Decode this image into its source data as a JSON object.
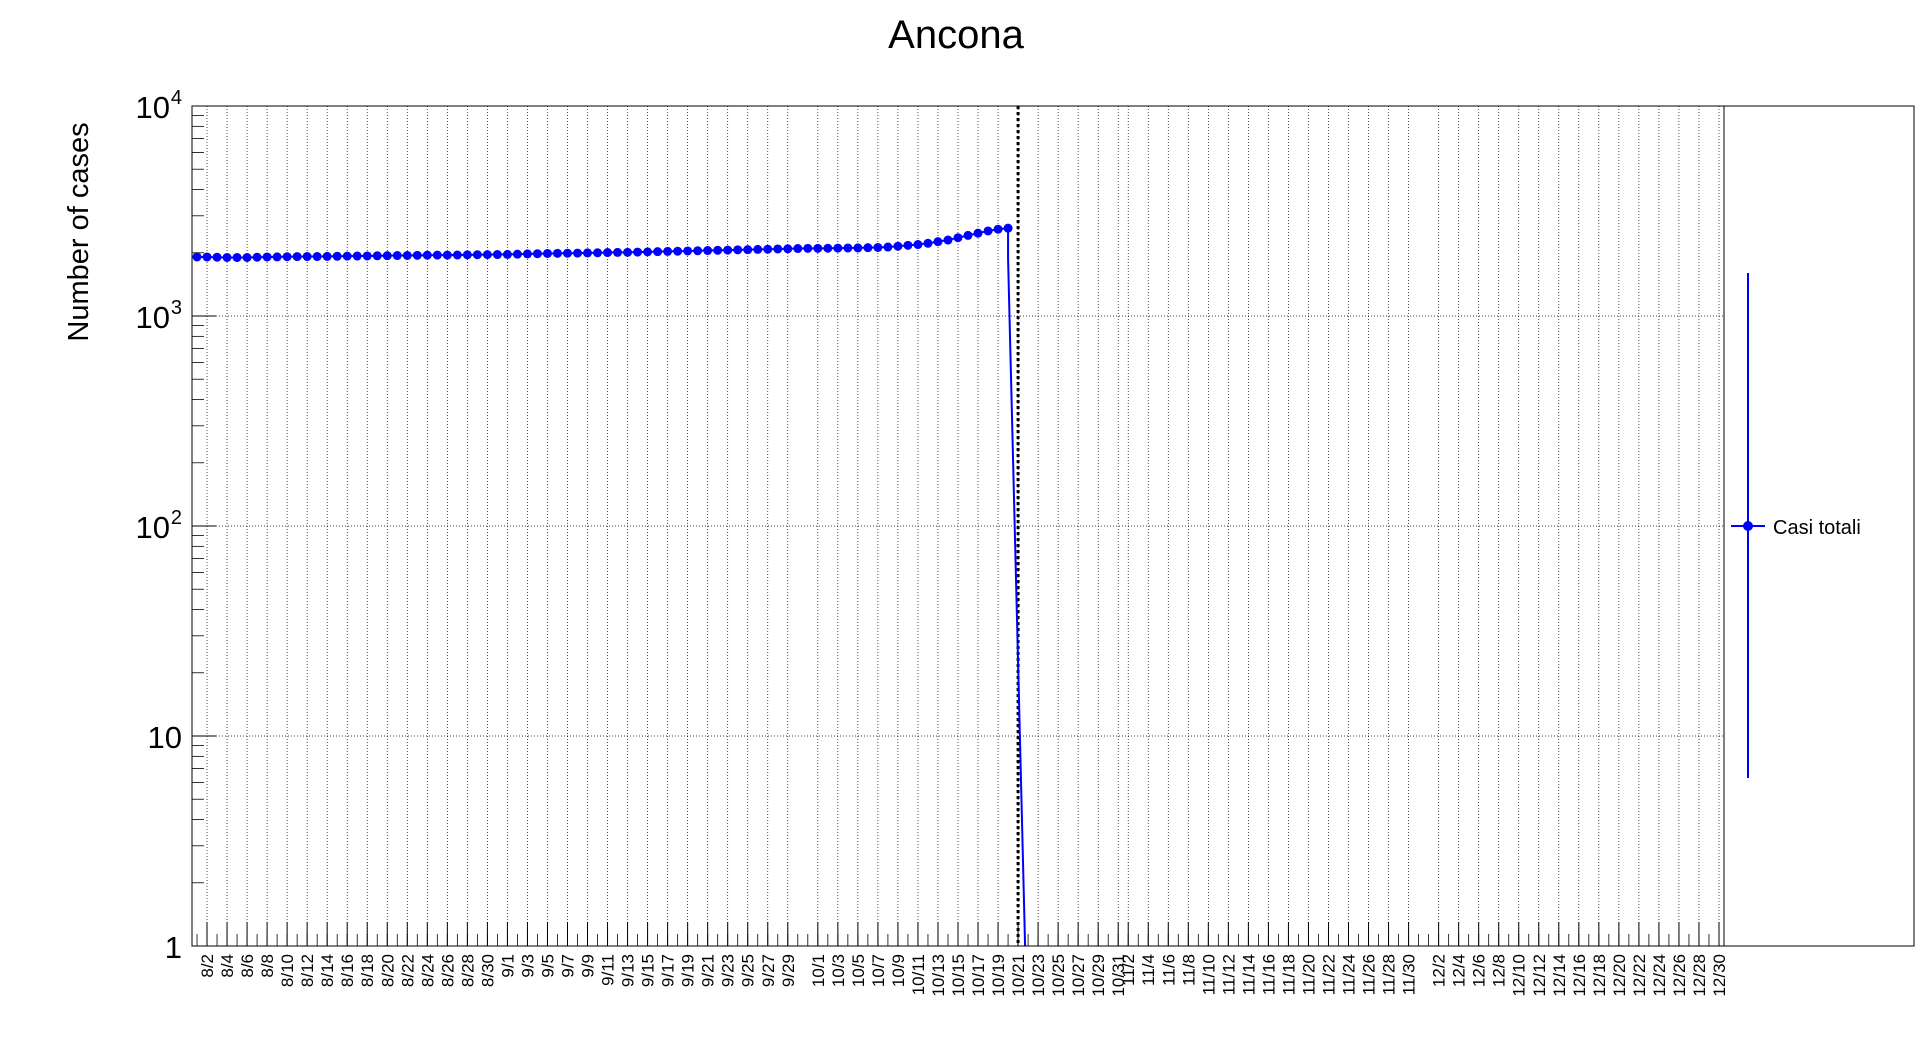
{
  "chart_data": {
    "type": "line",
    "title": "Ancona",
    "xlabel": "",
    "ylabel": "Number of cases",
    "y_scale": "log",
    "ylim": [
      1,
      10000
    ],
    "grid": true,
    "legend_placement": "right",
    "x_start": "8/1",
    "x_end": "12/31",
    "x_tick_labels": [
      "8/2",
      "8/4",
      "8/6",
      "8/8",
      "8/10",
      "8/12",
      "8/14",
      "8/16",
      "8/18",
      "8/20",
      "8/22",
      "8/24",
      "8/26",
      "8/28",
      "8/30",
      "9/1",
      "9/3",
      "9/5",
      "9/7",
      "9/9",
      "9/11",
      "9/13",
      "9/15",
      "9/17",
      "9/19",
      "9/21",
      "9/23",
      "9/25",
      "9/27",
      "9/29",
      "10/1",
      "10/3",
      "10/5",
      "10/7",
      "10/9",
      "10/11",
      "10/13",
      "10/15",
      "10/17",
      "10/19",
      "10/21",
      "10/23",
      "10/25",
      "10/27",
      "10/29",
      "10/31",
      "11/2",
      "11/4",
      "11/6",
      "11/8",
      "11/10",
      "11/12",
      "11/14",
      "11/16",
      "11/18",
      "11/20",
      "11/22",
      "11/24",
      "11/26",
      "11/28",
      "11/30",
      "12/2",
      "12/4",
      "12/6",
      "12/8",
      "12/10",
      "12/12",
      "12/14",
      "12/16",
      "12/18",
      "12/20",
      "12/22",
      "12/24",
      "12/26",
      "12/28",
      "12/30"
    ],
    "y_tick_labels": [
      {
        "value": 1,
        "base": "1",
        "exp": ""
      },
      {
        "value": 10,
        "base": "10",
        "exp": ""
      },
      {
        "value": 100,
        "base": "10",
        "exp": "2"
      },
      {
        "value": 1000,
        "base": "10",
        "exp": "3"
      },
      {
        "value": 10000,
        "base": "10",
        "exp": "4"
      }
    ],
    "vertical_marker": {
      "x": "10/21",
      "style": "dotted",
      "color": "#000000"
    },
    "series": [
      {
        "name": "Casi totali",
        "color": "#0000ff",
        "x_first": "8/1",
        "values": [
          1910,
          1910,
          1905,
          1900,
          1900,
          1900,
          1905,
          1910,
          1912,
          1915,
          1918,
          1920,
          1920,
          1922,
          1925,
          1928,
          1930,
          1932,
          1935,
          1938,
          1940,
          1942,
          1945,
          1948,
          1950,
          1950,
          1952,
          1955,
          1958,
          1960,
          1962,
          1965,
          1970,
          1975,
          1980,
          1985,
          1988,
          1990,
          1993,
          1997,
          2000,
          2005,
          2008,
          2010,
          2015,
          2020,
          2025,
          2030,
          2035,
          2040,
          2045,
          2050,
          2055,
          2060,
          2065,
          2070,
          2075,
          2080,
          2085,
          2090,
          2095,
          2100,
          2100,
          2102,
          2105,
          2108,
          2110,
          2115,
          2120,
          2130,
          2150,
          2170,
          2190,
          2220,
          2260,
          2300,
          2360,
          2420,
          2480,
          2540,
          2590,
          2620
        ],
        "drop_to_zero_at": "10/22"
      }
    ]
  }
}
